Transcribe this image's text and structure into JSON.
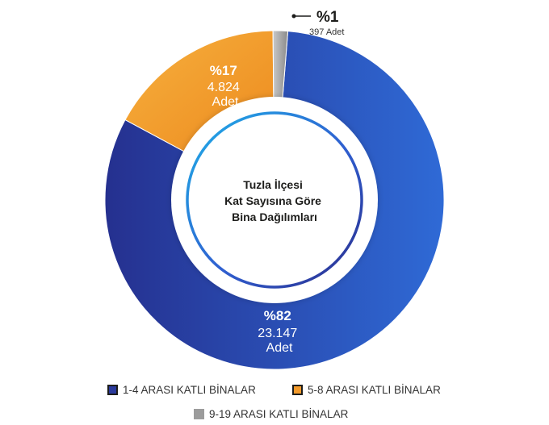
{
  "chart_data": {
    "type": "pie",
    "title": "Tuzla İlçesi Kat Sayısına Göre Bina Dağılımları",
    "title_lines": [
      "Tuzla İlçesi",
      "Kat Sayısına Göre",
      "Bina Dağılımları"
    ],
    "unit": "Adet",
    "legend_placement": "bottom",
    "series": [
      {
        "name": "1-4 ARASI KATLI BİNALAR",
        "value": 23147,
        "value_label": "23.147",
        "percent_label": "%82",
        "color": "#2a3a9c"
      },
      {
        "name": "5-8 ARASI KATLI BİNALAR",
        "value": 4824,
        "value_label": "4.824",
        "percent_label": "%17",
        "color": "#f39a2b"
      },
      {
        "name": "9-19 ARASI KATLI BİNALAR",
        "value": 397,
        "value_label": "397",
        "percent_label": "%1",
        "color": "#9c9c9c"
      }
    ]
  }
}
